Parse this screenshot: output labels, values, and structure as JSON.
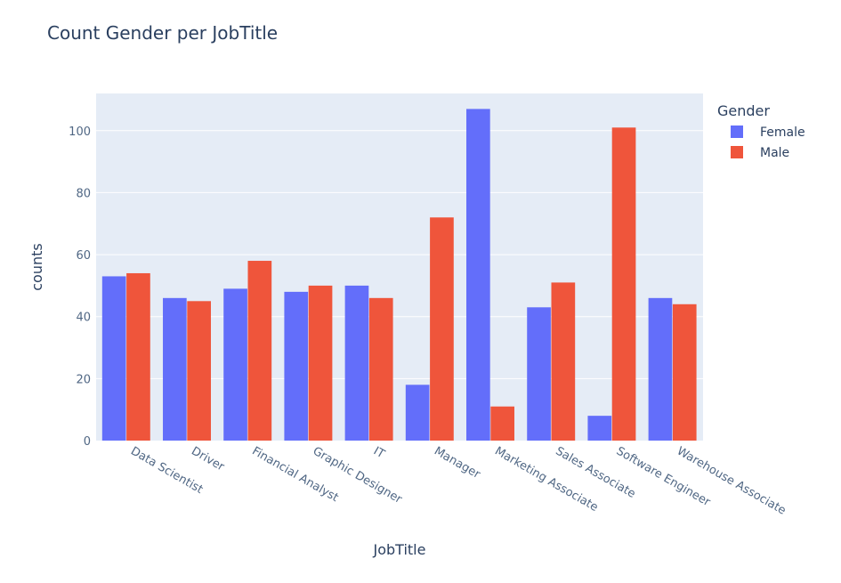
{
  "colors": {
    "plot_bg": "#e5ecf6",
    "gridline": "#ffffff",
    "text": "#2a3f5f",
    "female": "#636efa",
    "male": "#ef553b"
  },
  "chart_data": {
    "type": "bar",
    "barmode": "group",
    "title": "Count Gender per JobTitle",
    "xlabel": "JobTitle",
    "ylabel": "counts",
    "ylim": [
      0,
      112
    ],
    "yticks": [
      0,
      20,
      40,
      60,
      80,
      100
    ],
    "grid": true,
    "legend_title": "Gender",
    "legend_position": "top-right",
    "categories": [
      "Data Scientist",
      "Driver",
      "Financial Analyst",
      "Graphic Designer",
      "IT",
      "Manager",
      "Marketing Associate",
      "Sales Associate",
      "Software Engineer",
      "Warehouse Associate"
    ],
    "series": [
      {
        "name": "Female",
        "color": "#636efa",
        "values": [
          53,
          46,
          49,
          48,
          50,
          18,
          107,
          43,
          8,
          46
        ]
      },
      {
        "name": "Male",
        "color": "#ef553b",
        "values": [
          54,
          45,
          58,
          50,
          46,
          72,
          11,
          51,
          101,
          44
        ]
      }
    ]
  }
}
